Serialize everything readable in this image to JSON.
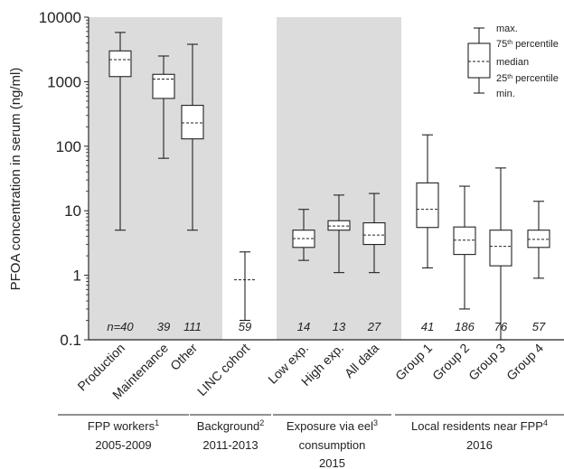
{
  "chart_data": {
    "type": "boxplot",
    "ylabel": "PFOA concentration in serum (ng/ml)",
    "yscale": "log",
    "ylim": [
      0.1,
      10000
    ],
    "yticks": [
      "0.1",
      "1",
      "10",
      "100",
      "1000",
      "10000"
    ],
    "groups": [
      {
        "label": "FPP workers",
        "sup": "1",
        "line2": "2005-2009",
        "shaded": true
      },
      {
        "label": "Background",
        "sup": "2",
        "line2": "2011-2013",
        "shaded": false
      },
      {
        "label": "Exposure via eel",
        "sup": "3",
        "line2": "consumption",
        "line3": "2015",
        "shaded": true
      },
      {
        "label": "Local residents near FPP",
        "sup": "4",
        "line2": "2016",
        "shaded": false
      }
    ],
    "boxes": [
      {
        "category": "Production",
        "n": "n=40",
        "min": 5,
        "q1": 1200,
        "median": 2200,
        "q3": 3000,
        "max": 5800
      },
      {
        "category": "Maintenance",
        "n": "39",
        "min": 65,
        "q1": 550,
        "median": 1100,
        "q3": 1300,
        "max": 2500
      },
      {
        "category": "Other",
        "n": "111",
        "min": 5,
        "q1": 130,
        "median": 230,
        "q3": 430,
        "max": 3800
      },
      {
        "category": "LINC cohort",
        "n": "59",
        "min": 0.2,
        "median": 0.85,
        "max": 2.3
      },
      {
        "category": "Low exp.",
        "n": "14",
        "min": 1.7,
        "q1": 2.7,
        "median": 3.7,
        "q3": 5,
        "max": 10.5
      },
      {
        "category": "High exp.",
        "n": "13",
        "min": 1.1,
        "q1": 5,
        "median": 5.8,
        "q3": 7,
        "max": 17.5
      },
      {
        "category": "All data",
        "n": "27",
        "min": 1.1,
        "q1": 3,
        "median": 4.2,
        "q3": 6.5,
        "max": 18.5
      },
      {
        "category": "Group 1",
        "n": "41",
        "min": 1.3,
        "q1": 5.5,
        "median": 10.5,
        "q3": 27,
        "max": 150
      },
      {
        "category": "Group 2",
        "n": "186",
        "min": 0.3,
        "q1": 2.1,
        "median": 3.5,
        "q3": 5.6,
        "max": 24
      },
      {
        "category": "Group 3",
        "n": "76",
        "min": 0.1,
        "q1": 1.4,
        "median": 2.8,
        "q3": 5,
        "max": 46
      },
      {
        "category": "Group 4",
        "n": "57",
        "min": 0.9,
        "q1": 2.7,
        "median": 3.6,
        "q3": 5,
        "max": 14
      }
    ],
    "legend": {
      "placement": "top-right",
      "max": "max.",
      "p75": "75",
      "p75_sup": "th",
      "p75_suffix": " percentile",
      "median": "median",
      "p25": "25",
      "p25_sup": "th",
      "p25_suffix": " percentile",
      "min": "min."
    }
  }
}
